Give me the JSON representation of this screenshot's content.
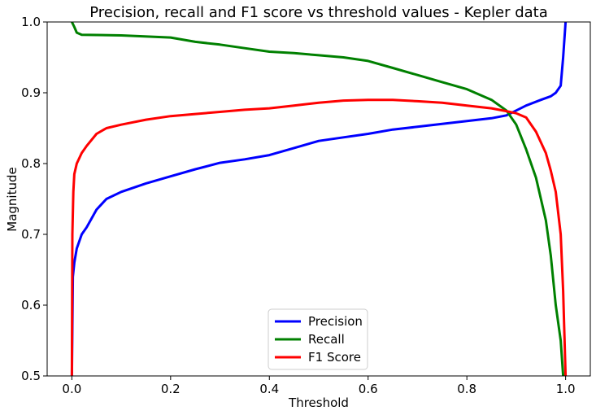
{
  "chart_data": {
    "type": "line",
    "title": "Precision, recall and F1 score vs threshold values - Kepler data",
    "xlabel": "Threshold",
    "ylabel": "Magnitude",
    "xlim": [
      -0.05,
      1.05
    ],
    "ylim": [
      0.5,
      1.0
    ],
    "xticks": [
      0.0,
      0.2,
      0.4,
      0.6,
      0.8,
      1.0
    ],
    "xtick_labels": [
      "0.0",
      "0.2",
      "0.4",
      "0.6",
      "0.8",
      "1.0"
    ],
    "yticks": [
      0.5,
      0.6,
      0.7,
      0.8,
      0.9,
      1.0
    ],
    "ytick_labels": [
      "0.5",
      "0.6",
      "0.7",
      "0.8",
      "0.9",
      "1.0"
    ],
    "grid": false,
    "legend": "lower-center",
    "series": [
      {
        "name": "Precision",
        "color": "#0000ff",
        "x": [
          0.0,
          0.002,
          0.005,
          0.01,
          0.02,
          0.03,
          0.05,
          0.07,
          0.1,
          0.15,
          0.2,
          0.25,
          0.3,
          0.35,
          0.4,
          0.45,
          0.5,
          0.55,
          0.6,
          0.65,
          0.7,
          0.75,
          0.8,
          0.85,
          0.88,
          0.9,
          0.92,
          0.95,
          0.97,
          0.98,
          0.99,
          0.995,
          1.0
        ],
        "y": [
          0.5,
          0.64,
          0.66,
          0.68,
          0.7,
          0.71,
          0.735,
          0.75,
          0.76,
          0.772,
          0.782,
          0.792,
          0.801,
          0.806,
          0.812,
          0.822,
          0.832,
          0.837,
          0.842,
          0.848,
          0.852,
          0.856,
          0.86,
          0.864,
          0.868,
          0.875,
          0.882,
          0.89,
          0.895,
          0.9,
          0.91,
          0.95,
          1.0
        ]
      },
      {
        "name": "Recall",
        "color": "#008000",
        "x": [
          0.0,
          0.005,
          0.01,
          0.02,
          0.1,
          0.2,
          0.25,
          0.3,
          0.35,
          0.4,
          0.45,
          0.5,
          0.55,
          0.6,
          0.65,
          0.7,
          0.75,
          0.8,
          0.85,
          0.88,
          0.9,
          0.92,
          0.94,
          0.96,
          0.97,
          0.98,
          0.99,
          0.995
        ],
        "y": [
          1.0,
          0.993,
          0.985,
          0.982,
          0.981,
          0.978,
          0.972,
          0.968,
          0.963,
          0.958,
          0.956,
          0.953,
          0.95,
          0.945,
          0.935,
          0.925,
          0.915,
          0.905,
          0.89,
          0.875,
          0.855,
          0.82,
          0.78,
          0.72,
          0.67,
          0.6,
          0.55,
          0.5
        ]
      },
      {
        "name": "F1 Score",
        "color": "#ff0000",
        "x": [
          0.0,
          0.001,
          0.003,
          0.005,
          0.01,
          0.02,
          0.03,
          0.05,
          0.07,
          0.1,
          0.15,
          0.2,
          0.25,
          0.3,
          0.35,
          0.4,
          0.45,
          0.5,
          0.55,
          0.6,
          0.65,
          0.7,
          0.75,
          0.8,
          0.85,
          0.88,
          0.9,
          0.92,
          0.94,
          0.96,
          0.97,
          0.98,
          0.99,
          0.995,
          1.0
        ],
        "y": [
          0.5,
          0.7,
          0.76,
          0.785,
          0.8,
          0.815,
          0.825,
          0.842,
          0.85,
          0.855,
          0.862,
          0.867,
          0.87,
          0.873,
          0.876,
          0.878,
          0.882,
          0.886,
          0.889,
          0.89,
          0.89,
          0.888,
          0.886,
          0.882,
          0.878,
          0.874,
          0.871,
          0.865,
          0.845,
          0.815,
          0.79,
          0.76,
          0.7,
          0.62,
          0.5
        ]
      }
    ]
  }
}
